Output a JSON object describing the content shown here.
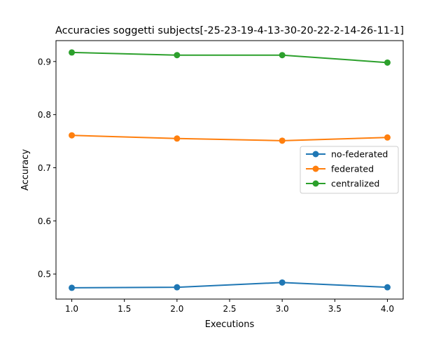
{
  "chart_data": {
    "type": "line",
    "title": "Accuracies soggetti subjects[-25-23-19-4-13-30-20-22-2-14-26-11-1]",
    "xlabel": "Executions",
    "ylabel": "Accuracy",
    "x": [
      1.0,
      2.0,
      3.0,
      4.0
    ],
    "xlim": [
      0.85,
      4.15
    ],
    "ylim": [
      0.4528,
      0.9393
    ],
    "xticks": [
      1.0,
      1.5,
      2.0,
      2.5,
      3.0,
      3.5,
      4.0
    ],
    "xtick_labels": [
      "1.0",
      "1.5",
      "2.0",
      "2.5",
      "3.0",
      "3.5",
      "4.0"
    ],
    "yticks": [
      0.5,
      0.6,
      0.7,
      0.8,
      0.9
    ],
    "ytick_labels": [
      "0.5",
      "0.6",
      "0.7",
      "0.8",
      "0.9"
    ],
    "grid": false,
    "legend_position": "center-right",
    "series": [
      {
        "name": "no-federated",
        "color": "#1f77b4",
        "values": [
          0.474,
          0.475,
          0.484,
          0.475
        ]
      },
      {
        "name": "federated",
        "color": "#ff7f0e",
        "values": [
          0.761,
          0.755,
          0.751,
          0.757
        ]
      },
      {
        "name": "centralized",
        "color": "#2ca02c",
        "values": [
          0.917,
          0.912,
          0.912,
          0.898
        ]
      }
    ]
  }
}
